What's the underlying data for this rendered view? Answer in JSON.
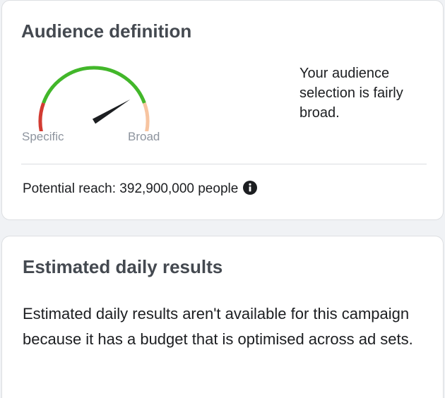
{
  "audience": {
    "title": "Audience definition",
    "gauge": {
      "label_specific": "Specific",
      "label_broad": "Broad",
      "level": 0.78,
      "colors": {
        "specific": "#d23b32",
        "middle": "#42b72a",
        "broad": "#f7c4a0",
        "needle": "#1c1e21"
      }
    },
    "description": "Your audience selection is fairly broad.",
    "potential_reach": "Potential reach: 392,900,000 people",
    "info_icon": "info-icon"
  },
  "estimated": {
    "title": "Estimated daily results",
    "text": "Estimated daily results aren't available for this campaign because it has a budget that is optimised across ad sets."
  }
}
